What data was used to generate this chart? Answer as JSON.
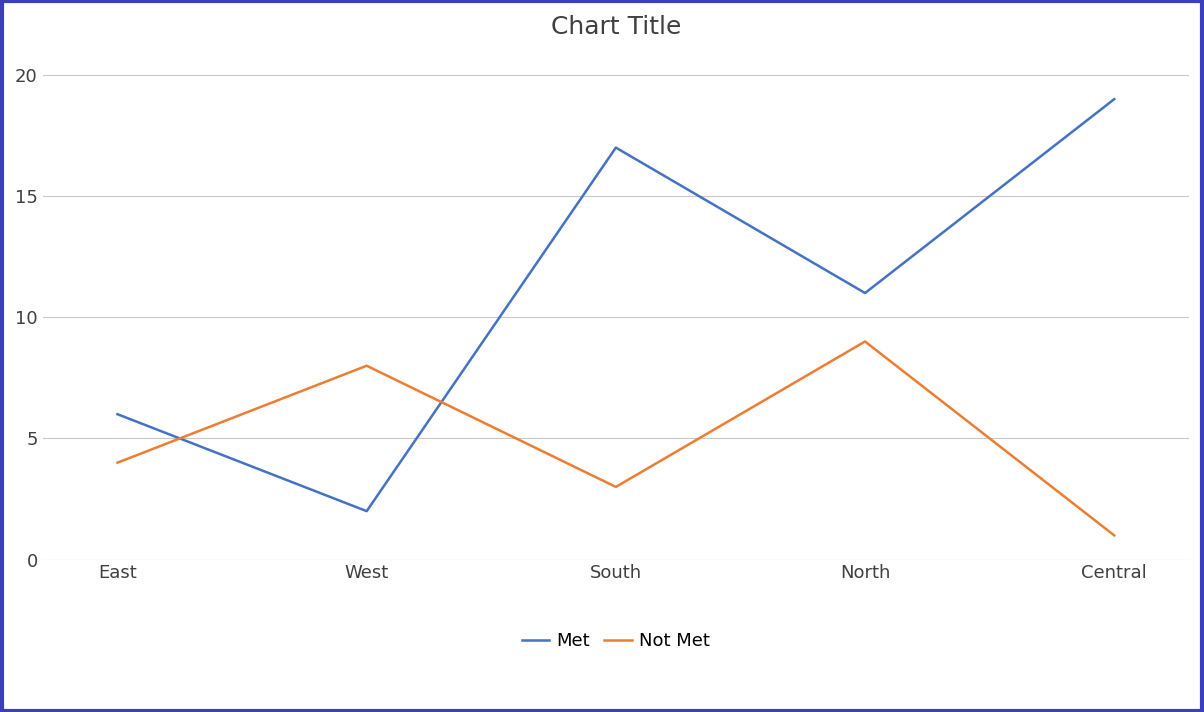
{
  "title": "Chart Title",
  "categories": [
    "East",
    "West",
    "South",
    "North",
    "Central"
  ],
  "series": [
    {
      "name": "Met",
      "values": [
        6,
        2,
        17,
        11,
        19
      ],
      "color": "#4472C4",
      "linewidth": 1.8
    },
    {
      "name": "Not Met",
      "values": [
        4,
        8,
        3,
        9,
        1
      ],
      "color": "#ED7D31",
      "linewidth": 1.8
    }
  ],
  "ylim": [
    0,
    21
  ],
  "yticks": [
    0,
    5,
    10,
    15,
    20
  ],
  "title_fontsize": 18,
  "tick_fontsize": 13,
  "legend_fontsize": 13,
  "background_color": "#FFFFFF",
  "plot_background": "#FFFFFF",
  "grid_color": "#C8C8C8",
  "border_color": "#3B3FBF",
  "border_linewidth": 3.0
}
